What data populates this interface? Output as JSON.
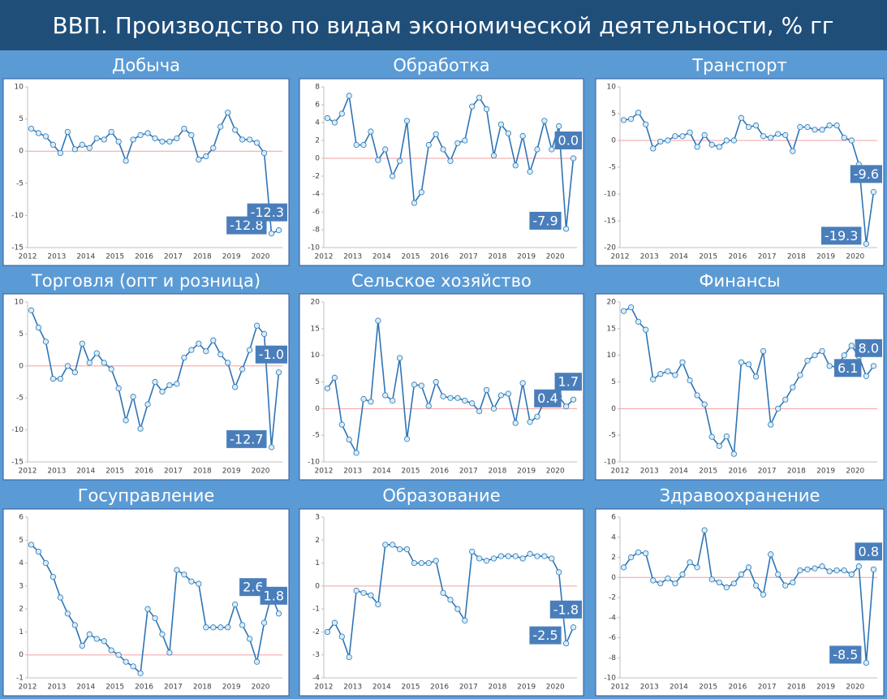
{
  "title": "ВВП. Производство по видам экономической деятельности, % гг",
  "chart_data": [
    {
      "type": "line",
      "title": "Добыча",
      "color": "#2e75b6",
      "marker_fill": "#d6eef8",
      "categories": [
        "2012",
        null,
        null,
        null,
        "2013",
        null,
        null,
        null,
        "2014",
        null,
        null,
        null,
        "2015",
        null,
        null,
        null,
        "2016",
        null,
        null,
        null,
        "2017",
        null,
        null,
        null,
        "2018",
        null,
        null,
        null,
        "2019",
        null,
        null,
        null,
        "2020",
        null,
        null
      ],
      "values": [
        3.5,
        2.8,
        2.3,
        1.0,
        -0.3,
        3.0,
        0.3,
        1.0,
        0.5,
        2.0,
        1.8,
        3.0,
        1.5,
        -1.5,
        1.8,
        2.5,
        2.8,
        2.0,
        1.5,
        1.5,
        2.0,
        3.5,
        2.5,
        -1.3,
        -0.8,
        0.5,
        3.8,
        6.0,
        3.3,
        1.8,
        1.8,
        1.3,
        -0.3,
        -12.8,
        -12.3
      ],
      "value_labels": [
        null,
        null,
        null,
        null,
        null,
        null,
        null,
        null,
        null,
        null,
        null,
        null,
        null,
        null,
        null,
        null,
        null,
        null,
        null,
        null,
        null,
        null,
        null,
        null,
        null,
        null,
        null,
        null,
        null,
        null,
        null,
        null,
        null,
        "-12.8",
        "-12.3"
      ],
      "ylim": [
        -15,
        10
      ],
      "yticks": [
        -15,
        -10,
        -5,
        0,
        5,
        10
      ],
      "hline": {
        "value": 0,
        "color": "#f2a0a0"
      }
    },
    {
      "type": "line",
      "title": "Обработка",
      "color": "#2e75b6",
      "marker_fill": "#d6eef8",
      "categories": [
        "2012",
        null,
        null,
        null,
        "2013",
        null,
        null,
        null,
        "2014",
        null,
        null,
        null,
        "2015",
        null,
        null,
        null,
        "2016",
        null,
        null,
        null,
        "2017",
        null,
        null,
        null,
        "2018",
        null,
        null,
        null,
        "2019",
        null,
        null,
        null,
        "2020",
        null,
        null
      ],
      "values": [
        4.5,
        4.0,
        5.0,
        7.0,
        1.5,
        1.5,
        3.0,
        -0.2,
        1.0,
        -2.0,
        -0.3,
        4.2,
        -5.0,
        -3.8,
        1.5,
        2.7,
        1.0,
        -0.3,
        1.7,
        2.0,
        5.8,
        6.8,
        5.5,
        0.3,
        3.8,
        2.8,
        -0.8,
        2.5,
        -1.5,
        1.0,
        4.2,
        1.0,
        3.6,
        -7.9,
        0.0
      ],
      "value_labels": [
        null,
        null,
        null,
        null,
        null,
        null,
        null,
        null,
        null,
        null,
        null,
        null,
        null,
        null,
        null,
        null,
        null,
        null,
        null,
        null,
        null,
        null,
        null,
        null,
        null,
        null,
        null,
        null,
        null,
        null,
        null,
        null,
        null,
        "-7.9",
        "0.0"
      ],
      "ylim": [
        -10,
        8
      ],
      "yticks": [
        -10,
        -8,
        -6,
        -4,
        -2,
        0,
        2,
        4,
        6,
        8
      ],
      "hline": {
        "value": 0,
        "color": "#f2a0a0"
      }
    },
    {
      "type": "line",
      "title": "Транспорт",
      "color": "#2e75b6",
      "marker_fill": "#d6eef8",
      "categories": [
        "2012",
        null,
        null,
        null,
        "2013",
        null,
        null,
        null,
        "2014",
        null,
        null,
        null,
        "2015",
        null,
        null,
        null,
        "2016",
        null,
        null,
        null,
        "2017",
        null,
        null,
        null,
        "2018",
        null,
        null,
        null,
        "2019",
        null,
        null,
        null,
        "2020",
        null,
        null
      ],
      "values": [
        3.8,
        4.0,
        5.2,
        3.0,
        -1.5,
        -0.2,
        0.0,
        0.8,
        0.8,
        1.5,
        -1.2,
        1.0,
        -0.8,
        -1.2,
        0.0,
        0.0,
        4.2,
        2.5,
        2.8,
        0.8,
        0.5,
        1.2,
        1.0,
        -2.0,
        2.5,
        2.5,
        2.0,
        2.0,
        2.8,
        2.8,
        0.5,
        0.0,
        -4.5,
        -19.3,
        -9.6
      ],
      "value_labels": [
        null,
        null,
        null,
        null,
        null,
        null,
        null,
        null,
        null,
        null,
        null,
        null,
        null,
        null,
        null,
        null,
        null,
        null,
        null,
        null,
        null,
        null,
        null,
        null,
        null,
        null,
        null,
        null,
        null,
        null,
        null,
        null,
        null,
        "-19.3",
        "-9.6"
      ],
      "ylim": [
        -20,
        10
      ],
      "yticks": [
        -20,
        -15,
        -10,
        -5,
        0,
        5,
        10
      ],
      "hline": {
        "value": 0,
        "color": "#f2a0a0"
      }
    },
    {
      "type": "line",
      "title": "Торговля (опт и розница)",
      "color": "#2e75b6",
      "marker_fill": "#d6eef8",
      "categories": [
        "2012",
        null,
        null,
        null,
        "2013",
        null,
        null,
        null,
        "2014",
        null,
        null,
        null,
        "2015",
        null,
        null,
        null,
        "2016",
        null,
        null,
        null,
        "2017",
        null,
        null,
        null,
        "2018",
        null,
        null,
        null,
        "2019",
        null,
        null,
        null,
        "2020",
        null,
        null
      ],
      "values": [
        8.7,
        6.0,
        3.8,
        -2.0,
        -2.0,
        0.0,
        -1.0,
        3.5,
        0.5,
        2.0,
        0.5,
        -0.5,
        -3.5,
        -8.5,
        -4.8,
        -9.8,
        -6.0,
        -2.5,
        -4.0,
        -3.0,
        -2.8,
        1.3,
        2.5,
        3.5,
        2.3,
        4.0,
        1.8,
        0.5,
        -3.3,
        -0.5,
        2.5,
        6.3,
        5.0,
        -12.7,
        -1.0
      ],
      "value_labels": [
        null,
        null,
        null,
        null,
        null,
        null,
        null,
        null,
        null,
        null,
        null,
        null,
        null,
        null,
        null,
        null,
        null,
        null,
        null,
        null,
        null,
        null,
        null,
        null,
        null,
        null,
        null,
        null,
        null,
        null,
        null,
        null,
        null,
        "-12.7",
        "-1.0"
      ],
      "ylim": [
        -15,
        10
      ],
      "yticks": [
        -15,
        -10,
        -5,
        0,
        5,
        10
      ],
      "hline": {
        "value": 0,
        "color": "#f2a0a0"
      }
    },
    {
      "type": "line",
      "title": "Сельское хозяйство",
      "color": "#2e75b6",
      "marker_fill": "#d6eef8",
      "categories": [
        "2012",
        null,
        null,
        null,
        "2013",
        null,
        null,
        null,
        "2014",
        null,
        null,
        null,
        "2015",
        null,
        null,
        null,
        "2016",
        null,
        null,
        null,
        "2017",
        null,
        null,
        null,
        "2018",
        null,
        null,
        null,
        "2019",
        null,
        null,
        null,
        "2020",
        null,
        null
      ],
      "values": [
        3.8,
        5.8,
        -3.0,
        -5.8,
        -8.3,
        1.8,
        1.3,
        16.5,
        2.5,
        1.5,
        9.5,
        -5.7,
        4.5,
        4.3,
        0.5,
        5.0,
        2.3,
        2.0,
        2.0,
        1.5,
        1.0,
        -0.5,
        3.5,
        0.0,
        2.5,
        2.8,
        -2.7,
        4.8,
        -2.5,
        -1.5,
        1.5,
        2.0,
        2.3,
        0.4,
        1.7
      ],
      "value_labels": [
        null,
        null,
        null,
        null,
        null,
        null,
        null,
        null,
        null,
        null,
        null,
        null,
        null,
        null,
        null,
        null,
        null,
        null,
        null,
        null,
        null,
        null,
        null,
        null,
        null,
        null,
        null,
        null,
        null,
        null,
        null,
        null,
        null,
        "0.4",
        "1.7"
      ],
      "ylim": [
        -10,
        20
      ],
      "yticks": [
        -10,
        -5,
        0,
        5,
        10,
        15,
        20
      ],
      "hline": {
        "value": 0,
        "color": "#f2a0a0"
      }
    },
    {
      "type": "line",
      "title": "Финансы",
      "color": "#2e75b6",
      "marker_fill": "#d6eef8",
      "categories": [
        "2012",
        null,
        null,
        null,
        "2013",
        null,
        null,
        null,
        "2014",
        null,
        null,
        null,
        "2015",
        null,
        null,
        null,
        "2016",
        null,
        null,
        null,
        "2017",
        null,
        null,
        null,
        "2018",
        null,
        null,
        null,
        "2019",
        null,
        null,
        null,
        "2020",
        null,
        null
      ],
      "values": [
        18.3,
        19.0,
        16.3,
        14.8,
        5.5,
        6.5,
        7.0,
        6.3,
        8.7,
        5.3,
        2.5,
        0.8,
        -5.3,
        -7.0,
        -5.2,
        -8.5,
        8.7,
        8.3,
        6.0,
        10.8,
        -3.0,
        0.0,
        1.7,
        4.0,
        6.3,
        9.0,
        10.0,
        10.8,
        8.0,
        7.8,
        10.0,
        11.8,
        9.8,
        6.1,
        8.0
      ],
      "value_labels": [
        null,
        null,
        null,
        null,
        null,
        null,
        null,
        null,
        null,
        null,
        null,
        null,
        null,
        null,
        null,
        null,
        null,
        null,
        null,
        null,
        null,
        null,
        null,
        null,
        null,
        null,
        null,
        null,
        null,
        null,
        null,
        null,
        null,
        "6.1",
        "8.0"
      ],
      "ylim": [
        -10,
        20
      ],
      "yticks": [
        -10,
        -5,
        0,
        5,
        10,
        15,
        20
      ],
      "hline": {
        "value": 0,
        "color": "#f2a0a0"
      }
    },
    {
      "type": "line",
      "title": "Госуправление",
      "color": "#2e75b6",
      "marker_fill": "#d6eef8",
      "categories": [
        "2012",
        null,
        null,
        null,
        "2013",
        null,
        null,
        null,
        "2014",
        null,
        null,
        null,
        "2015",
        null,
        null,
        null,
        "2016",
        null,
        null,
        null,
        "2017",
        null,
        null,
        null,
        "2018",
        null,
        null,
        null,
        "2019",
        null,
        null,
        null,
        "2020",
        null,
        null
      ],
      "values": [
        4.8,
        4.5,
        4.0,
        3.4,
        2.5,
        1.8,
        1.3,
        0.4,
        0.9,
        0.7,
        0.6,
        0.2,
        0.0,
        -0.3,
        -0.5,
        -0.8,
        2.0,
        1.6,
        0.9,
        0.1,
        3.7,
        3.5,
        3.2,
        3.1,
        1.2,
        1.2,
        1.2,
        1.2,
        2.2,
        1.3,
        0.7,
        -0.3,
        1.4,
        2.6,
        1.8
      ],
      "value_labels": [
        null,
        null,
        null,
        null,
        null,
        null,
        null,
        null,
        null,
        null,
        null,
        null,
        null,
        null,
        null,
        null,
        null,
        null,
        null,
        null,
        null,
        null,
        null,
        null,
        null,
        null,
        null,
        null,
        null,
        null,
        null,
        null,
        null,
        "2.6",
        "1.8"
      ],
      "ylim": [
        -1,
        6
      ],
      "yticks": [
        -1,
        0,
        1,
        2,
        3,
        4,
        5,
        6
      ],
      "hline": {
        "value": 0,
        "color": "#f2a0a0"
      }
    },
    {
      "type": "line",
      "title": "Образование",
      "color": "#2e75b6",
      "marker_fill": "#d6eef8",
      "categories": [
        "2012",
        null,
        null,
        null,
        "2013",
        null,
        null,
        null,
        "2014",
        null,
        null,
        null,
        "2015",
        null,
        null,
        null,
        "2016",
        null,
        null,
        null,
        "2017",
        null,
        null,
        null,
        "2018",
        null,
        null,
        null,
        "2019",
        null,
        null,
        null,
        "2020",
        null,
        null
      ],
      "values": [
        -2.0,
        -1.6,
        -2.2,
        -3.1,
        -0.2,
        -0.3,
        -0.4,
        -0.8,
        1.8,
        1.8,
        1.6,
        1.6,
        1.0,
        1.0,
        1.0,
        1.1,
        -0.3,
        -0.6,
        -1.0,
        -1.5,
        1.5,
        1.2,
        1.1,
        1.2,
        1.3,
        1.3,
        1.3,
        1.2,
        1.4,
        1.3,
        1.3,
        1.2,
        0.6,
        -2.5,
        -1.8
      ],
      "value_labels": [
        null,
        null,
        null,
        null,
        null,
        null,
        null,
        null,
        null,
        null,
        null,
        null,
        null,
        null,
        null,
        null,
        null,
        null,
        null,
        null,
        null,
        null,
        null,
        null,
        null,
        null,
        null,
        null,
        null,
        null,
        null,
        null,
        null,
        "-2.5",
        "-1.8"
      ],
      "ylim": [
        -4,
        3
      ],
      "yticks": [
        -4,
        -3,
        -2,
        -1,
        0,
        1,
        2,
        3
      ],
      "hline": {
        "value": 0,
        "color": "#f2a0a0"
      }
    },
    {
      "type": "line",
      "title": "Здравоохранение",
      "color": "#2e75b6",
      "marker_fill": "#d6eef8",
      "categories": [
        "2012",
        null,
        null,
        null,
        "2013",
        null,
        null,
        null,
        "2014",
        null,
        null,
        null,
        "2015",
        null,
        null,
        null,
        "2016",
        null,
        null,
        null,
        "2017",
        null,
        null,
        null,
        "2018",
        null,
        null,
        null,
        "2019",
        null,
        null,
        null,
        "2020",
        null,
        null
      ],
      "values": [
        1.0,
        2.0,
        2.5,
        2.4,
        -0.3,
        -0.6,
        -0.1,
        -0.6,
        0.3,
        1.5,
        1.0,
        4.7,
        -0.2,
        -0.5,
        -1.0,
        -0.6,
        0.3,
        1.0,
        -0.8,
        -1.7,
        2.3,
        0.3,
        -0.8,
        -0.5,
        0.7,
        0.8,
        0.9,
        1.1,
        0.6,
        0.7,
        0.7,
        0.3,
        1.1,
        -8.5,
        0.8
      ],
      "value_labels": [
        null,
        null,
        null,
        null,
        null,
        null,
        null,
        null,
        null,
        null,
        null,
        null,
        null,
        null,
        null,
        null,
        null,
        null,
        null,
        null,
        null,
        null,
        null,
        null,
        null,
        null,
        null,
        null,
        null,
        null,
        null,
        null,
        null,
        "-8.5",
        "0.8"
      ],
      "ylim": [
        -10,
        6
      ],
      "yticks": [
        -10,
        -8,
        -6,
        -4,
        -2,
        0,
        2,
        4,
        6
      ],
      "hline": {
        "value": 0,
        "color": "#f2a0a0"
      }
    }
  ]
}
